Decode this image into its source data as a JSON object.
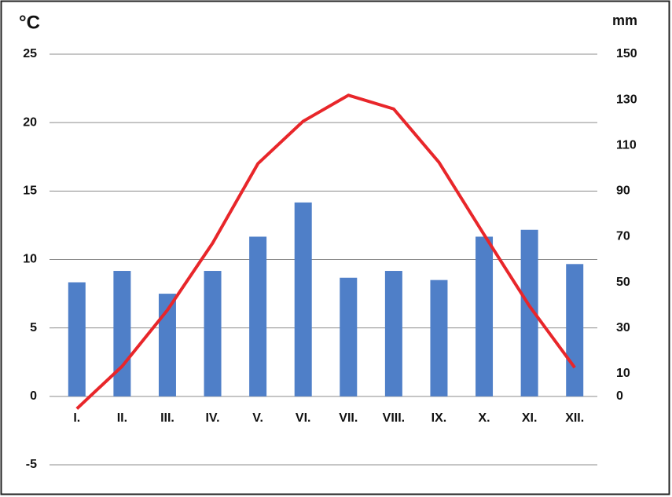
{
  "chart_data": {
    "type": "bar-line",
    "y_label": "°C",
    "y2_label": "mm",
    "categories": [
      "I.",
      "II.",
      "III.",
      "IV.",
      "V.",
      "VI.",
      "VII.",
      "VIII.",
      "IX.",
      "X.",
      "XI.",
      "XII."
    ],
    "series": [
      {
        "type": "bar",
        "axis": "y2",
        "color": "#4f7fc8",
        "values": [
          50,
          55,
          45,
          55,
          70,
          85,
          52,
          55,
          51,
          70,
          73,
          58
        ]
      },
      {
        "type": "line",
        "axis": "y",
        "color": "#e8262a",
        "values": [
          -0.9,
          2.2,
          6.3,
          11.2,
          17.0,
          20.1,
          22.0,
          21.0,
          17.1,
          11.8,
          6.6,
          2.1
        ]
      }
    ],
    "ylim": [
      -5,
      25
    ],
    "yticks": [
      -5,
      0,
      5,
      10,
      15,
      20,
      25
    ],
    "y2lim": [
      -30,
      150
    ],
    "y2ticks": [
      0,
      10,
      30,
      50,
      70,
      90,
      110,
      130,
      150
    ],
    "grid": true
  }
}
